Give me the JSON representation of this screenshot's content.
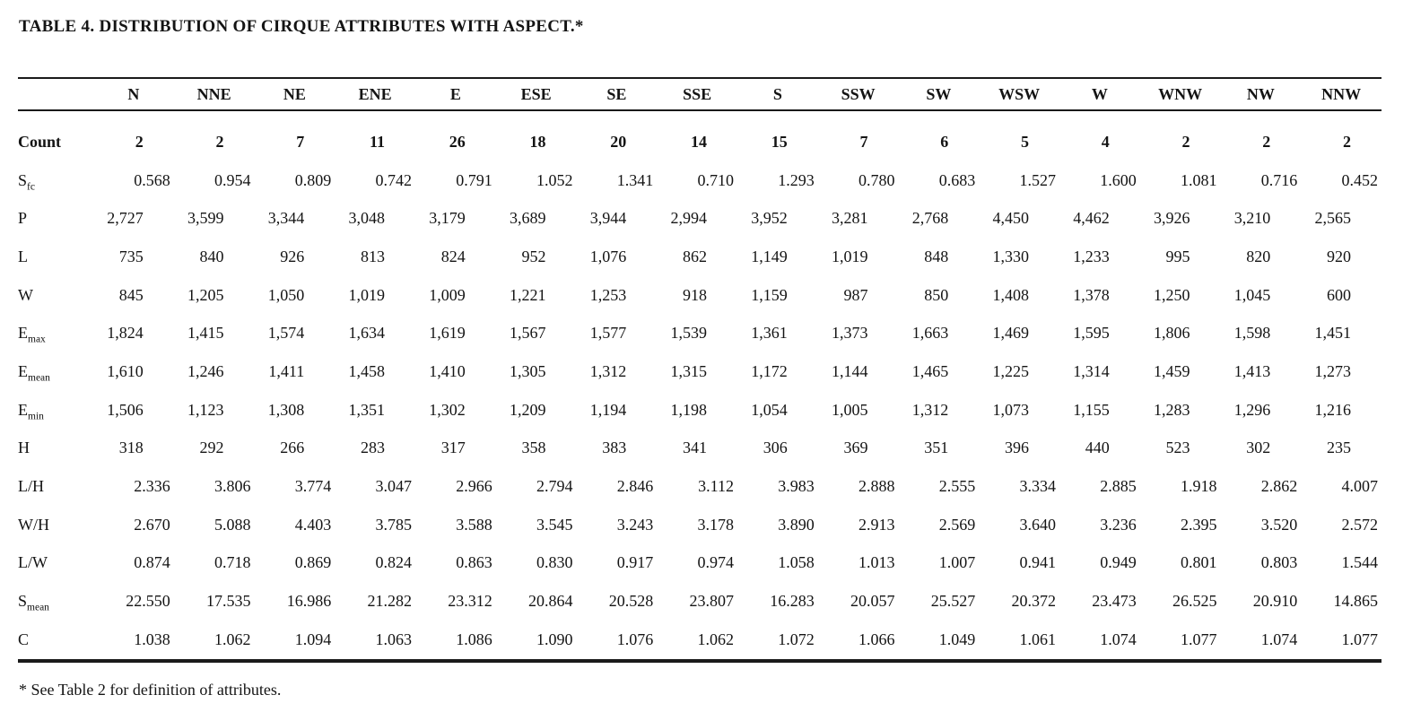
{
  "title": "TABLE 4. DISTRIBUTION OF CIRQUE ATTRIBUTES WITH ASPECT.*",
  "footnote": "* See Table 2 for definition of attributes.",
  "table": {
    "columns": [
      "N",
      "NNE",
      "NE",
      "ENE",
      "E",
      "ESE",
      "SE",
      "SSE",
      "S",
      "SSW",
      "SW",
      "WSW",
      "W",
      "WNW",
      "NW",
      "NNW"
    ],
    "rows": [
      {
        "label": "Count",
        "sub": "",
        "format": "int",
        "bold": true,
        "values": [
          "2",
          "2",
          "7",
          "11",
          "26",
          "18",
          "20",
          "14",
          "15",
          "7",
          "6",
          "5",
          "4",
          "2",
          "2",
          "2"
        ]
      },
      {
        "label": "S",
        "sub": "fc",
        "format": "dec",
        "bold": false,
        "values": [
          "0.568",
          "0.954",
          "0.809",
          "0.742",
          "0.791",
          "1.052",
          "1.341",
          "0.710",
          "1.293",
          "0.780",
          "0.683",
          "1.527",
          "1.600",
          "1.081",
          "0.716",
          "0.452"
        ]
      },
      {
        "label": "P",
        "sub": "",
        "format": "int",
        "bold": false,
        "values": [
          "2,727",
          "3,599",
          "3,344",
          "3,048",
          "3,179",
          "3,689",
          "3,944",
          "2,994",
          "3,952",
          "3,281",
          "2,768",
          "4,450",
          "4,462",
          "3,926",
          "3,210",
          "2,565"
        ]
      },
      {
        "label": "L",
        "sub": "",
        "format": "int",
        "bold": false,
        "values": [
          "735",
          "840",
          "926",
          "813",
          "824",
          "952",
          "1,076",
          "862",
          "1,149",
          "1,019",
          "848",
          "1,330",
          "1,233",
          "995",
          "820",
          "920"
        ]
      },
      {
        "label": "W",
        "sub": "",
        "format": "int",
        "bold": false,
        "values": [
          "845",
          "1,205",
          "1,050",
          "1,019",
          "1,009",
          "1,221",
          "1,253",
          "918",
          "1,159",
          "987",
          "850",
          "1,408",
          "1,378",
          "1,250",
          "1,045",
          "600"
        ]
      },
      {
        "label": "E",
        "sub": "max",
        "format": "int",
        "bold": false,
        "values": [
          "1,824",
          "1,415",
          "1,574",
          "1,634",
          "1,619",
          "1,567",
          "1,577",
          "1,539",
          "1,361",
          "1,373",
          "1,663",
          "1,469",
          "1,595",
          "1,806",
          "1,598",
          "1,451"
        ]
      },
      {
        "label": "E",
        "sub": "mean",
        "format": "int",
        "bold": false,
        "values": [
          "1,610",
          "1,246",
          "1,411",
          "1,458",
          "1,410",
          "1,305",
          "1,312",
          "1,315",
          "1,172",
          "1,144",
          "1,465",
          "1,225",
          "1,314",
          "1,459",
          "1,413",
          "1,273"
        ]
      },
      {
        "label": "E",
        "sub": "min",
        "format": "int",
        "bold": false,
        "values": [
          "1,506",
          "1,123",
          "1,308",
          "1,351",
          "1,302",
          "1,209",
          "1,194",
          "1,198",
          "1,054",
          "1,005",
          "1,312",
          "1,073",
          "1,155",
          "1,283",
          "1,296",
          "1,216"
        ]
      },
      {
        "label": "H",
        "sub": "",
        "format": "int",
        "bold": false,
        "values": [
          "318",
          "292",
          "266",
          "283",
          "317",
          "358",
          "383",
          "341",
          "306",
          "369",
          "351",
          "396",
          "440",
          "523",
          "302",
          "235"
        ]
      },
      {
        "label": "L/H",
        "sub": "",
        "format": "dec",
        "bold": false,
        "values": [
          "2.336",
          "3.806",
          "3.774",
          "3.047",
          "2.966",
          "2.794",
          "2.846",
          "3.112",
          "3.983",
          "2.888",
          "2.555",
          "3.334",
          "2.885",
          "1.918",
          "2.862",
          "4.007"
        ]
      },
      {
        "label": "W/H",
        "sub": "",
        "format": "dec",
        "bold": false,
        "values": [
          "2.670",
          "5.088",
          "4.403",
          "3.785",
          "3.588",
          "3.545",
          "3.243",
          "3.178",
          "3.890",
          "2.913",
          "2.569",
          "3.640",
          "3.236",
          "2.395",
          "3.520",
          "2.572"
        ]
      },
      {
        "label": "L/W",
        "sub": "",
        "format": "dec",
        "bold": false,
        "values": [
          "0.874",
          "0.718",
          "0.869",
          "0.824",
          "0.863",
          "0.830",
          "0.917",
          "0.974",
          "1.058",
          "1.013",
          "1.007",
          "0.941",
          "0.949",
          "0.801",
          "0.803",
          "1.544"
        ]
      },
      {
        "label": "S",
        "sub": "mean",
        "format": "dec",
        "bold": false,
        "values": [
          "22.550",
          "17.535",
          "16.986",
          "21.282",
          "23.312",
          "20.864",
          "20.528",
          "23.807",
          "16.283",
          "20.057",
          "25.527",
          "20.372",
          "23.473",
          "26.525",
          "20.910",
          "14.865"
        ]
      },
      {
        "label": "C",
        "sub": "",
        "format": "dec",
        "bold": false,
        "values": [
          "1.038",
          "1.062",
          "1.094",
          "1.063",
          "1.086",
          "1.090",
          "1.076",
          "1.062",
          "1.072",
          "1.066",
          "1.049",
          "1.061",
          "1.074",
          "1.077",
          "1.074",
          "1.077"
        ]
      }
    ]
  }
}
